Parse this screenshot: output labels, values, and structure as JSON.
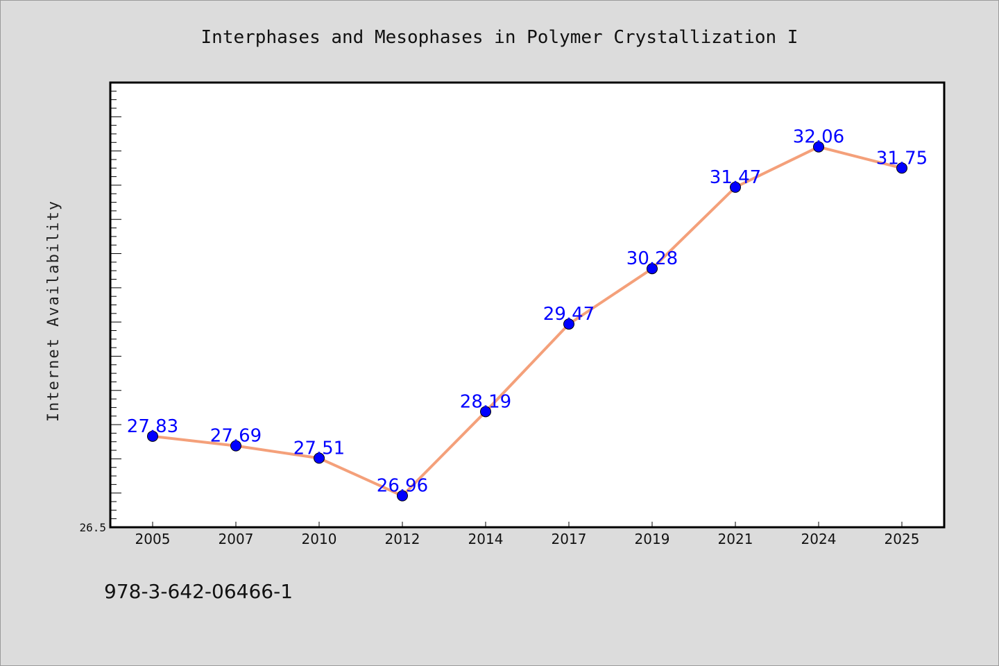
{
  "footer_text": "978-3-642-06466-1",
  "chart_data": {
    "type": "line",
    "title": "Interphases and Mesophases in Polymer Crystallization I",
    "xlabel": "",
    "ylabel": "Internet Availability",
    "categories": [
      "2005",
      "2007",
      "2010",
      "2012",
      "2014",
      "2017",
      "2019",
      "2021",
      "2024",
      "2025"
    ],
    "series": [
      {
        "values": [
          27.83,
          27.69,
          27.51,
          26.96,
          28.19,
          29.47,
          30.28,
          31.47,
          32.06,
          31.75
        ],
        "data_labels": [
          "27.83",
          "27.69",
          "27.51",
          "26.96",
          "28.19",
          "29.47",
          "30.28",
          "31.47",
          "32.06",
          "31.75"
        ]
      }
    ],
    "ylim": [
      26.5,
      33.0
    ],
    "ytick_labels": [
      "26.5"
    ],
    "grid": false,
    "legend": "none",
    "colors": {
      "line": "#f4a07a",
      "marker": "#0000ff",
      "data_label": "#0000ff",
      "plot_background": "#ffffff",
      "figure_background": "#dcdcdc"
    }
  }
}
